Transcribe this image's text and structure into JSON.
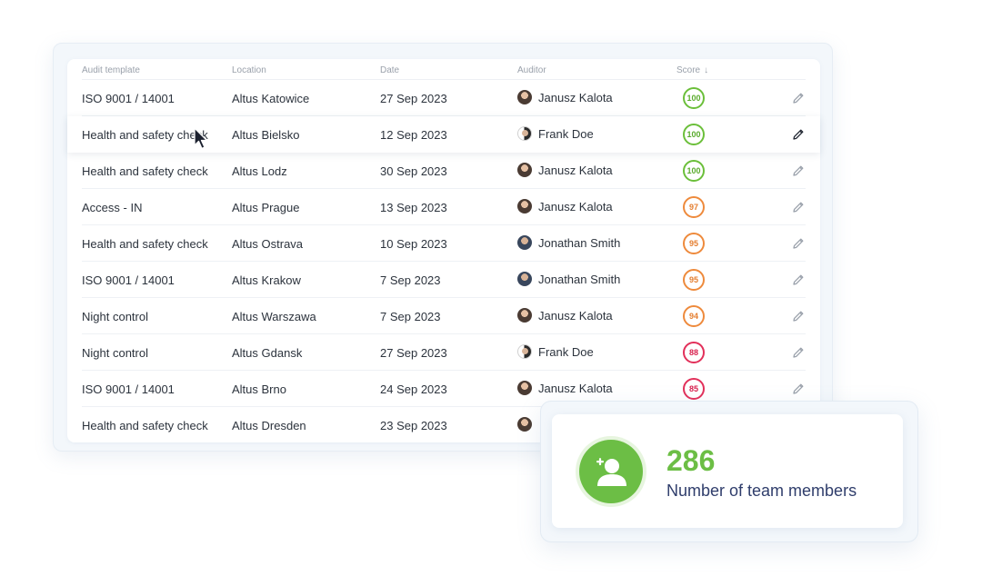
{
  "table": {
    "headers": {
      "template": "Audit template",
      "location": "Location",
      "date": "Date",
      "auditor": "Auditor",
      "score": "Score",
      "sort_icon": "arrow-down-icon"
    },
    "rows": [
      {
        "template": "ISO 9001 / 14001",
        "location": "Altus Katowice",
        "date": "27 Sep 2023",
        "auditor": "Janusz Kalota",
        "score": "100",
        "score_level": "green"
      },
      {
        "template": "Health and safety check",
        "location": "Altus Bielsko",
        "date": "12 Sep 2023",
        "auditor": "Frank Doe",
        "score": "100",
        "score_level": "green"
      },
      {
        "template": "Health and safety check",
        "location": "Altus Lodz",
        "date": "30 Sep 2023",
        "auditor": "Janusz Kalota",
        "score": "100",
        "score_level": "green"
      },
      {
        "template": "Access - IN",
        "location": "Altus Prague",
        "date": "13 Sep 2023",
        "auditor": "Janusz Kalota",
        "score": "97",
        "score_level": "orange"
      },
      {
        "template": "Health and safety check",
        "location": "Altus Ostrava",
        "date": "10 Sep 2023",
        "auditor": "Jonathan Smith",
        "score": "95",
        "score_level": "orange"
      },
      {
        "template": "ISO 9001 / 14001",
        "location": "Altus Krakow",
        "date": "7 Sep 2023",
        "auditor": "Jonathan Smith",
        "score": "95",
        "score_level": "orange"
      },
      {
        "template": "Night control",
        "location": "Altus Warszawa",
        "date": "7 Sep 2023",
        "auditor": "Janusz Kalota",
        "score": "94",
        "score_level": "orange"
      },
      {
        "template": "Night control",
        "location": "Altus Gdansk",
        "date": "27 Sep 2023",
        "auditor": "Frank Doe",
        "score": "88",
        "score_level": "red"
      },
      {
        "template": "ISO 9001 / 14001",
        "location": "Altus Brno",
        "date": "24 Sep 2023",
        "auditor": "Janusz Kalota",
        "score": "85",
        "score_level": "red"
      },
      {
        "template": "Health and safety check",
        "location": "Altus Dresden",
        "date": "23 Sep 2023",
        "auditor": "",
        "score": "",
        "score_level": ""
      }
    ]
  },
  "team_card": {
    "count": "286",
    "label": "Number of team members",
    "icon": "add-user-icon",
    "accent": "#6cbe45"
  },
  "colors": {
    "green": "#6bbf3a",
    "orange": "#ee8a3c",
    "red": "#e2305a",
    "label": "#2f3d6b"
  }
}
